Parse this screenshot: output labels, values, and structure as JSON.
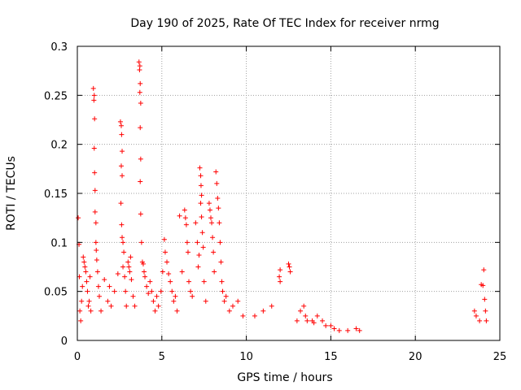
{
  "chart_data": {
    "type": "scatter",
    "title": "Day 190 of 2025, Rate Of TEC Index for receiver nrmg",
    "xlabel": "GPS time / hours",
    "ylabel": "ROTI / TECUs",
    "xlim": [
      0,
      25
    ],
    "ylim": [
      0,
      0.3
    ],
    "xticks": [
      0,
      5,
      10,
      15,
      20,
      25
    ],
    "xtick_labels": [
      "0",
      "5",
      "10",
      "15",
      "20",
      "25"
    ],
    "yticks": [
      0,
      0.05,
      0.1,
      0.15,
      0.2,
      0.25,
      0.3
    ],
    "ytick_labels": [
      "0",
      "0.05",
      "0.1",
      "0.15",
      "0.2",
      "0.25",
      "0.3"
    ],
    "grid": true,
    "marker": "plus",
    "color": "#ff0000",
    "series": [
      {
        "name": "ROTI",
        "points": [
          [
            0.05,
            0.125
          ],
          [
            0.1,
            0.098
          ],
          [
            0.12,
            0.065
          ],
          [
            0.15,
            0.03
          ],
          [
            0.2,
            0.02
          ],
          [
            0.25,
            0.04
          ],
          [
            0.3,
            0.055
          ],
          [
            0.35,
            0.085
          ],
          [
            0.4,
            0.08
          ],
          [
            0.45,
            0.075
          ],
          [
            0.5,
            0.07
          ],
          [
            0.55,
            0.06
          ],
          [
            0.6,
            0.05
          ],
          [
            0.65,
            0.035
          ],
          [
            0.7,
            0.04
          ],
          [
            0.75,
            0.065
          ],
          [
            0.8,
            0.03
          ],
          [
            0.95,
            0.257
          ],
          [
            1.0,
            0.25
          ],
          [
            0.98,
            0.245
          ],
          [
            1.02,
            0.226
          ],
          [
            1.0,
            0.196
          ],
          [
            1.02,
            0.171
          ],
          [
            1.05,
            0.153
          ],
          [
            1.05,
            0.131
          ],
          [
            1.1,
            0.12
          ],
          [
            1.1,
            0.1
          ],
          [
            1.12,
            0.092
          ],
          [
            1.15,
            0.082
          ],
          [
            1.2,
            0.07
          ],
          [
            1.25,
            0.055
          ],
          [
            1.3,
            0.045
          ],
          [
            1.4,
            0.03
          ],
          [
            1.6,
            0.062
          ],
          [
            1.8,
            0.04
          ],
          [
            1.9,
            0.055
          ],
          [
            2.0,
            0.035
          ],
          [
            2.2,
            0.05
          ],
          [
            2.4,
            0.068
          ],
          [
            2.55,
            0.223
          ],
          [
            2.6,
            0.219
          ],
          [
            2.62,
            0.21
          ],
          [
            2.65,
            0.193
          ],
          [
            2.6,
            0.178
          ],
          [
            2.65,
            0.168
          ],
          [
            2.58,
            0.14
          ],
          [
            2.62,
            0.118
          ],
          [
            2.65,
            0.105
          ],
          [
            2.7,
            0.1
          ],
          [
            2.75,
            0.09
          ],
          [
            2.7,
            0.075
          ],
          [
            2.8,
            0.065
          ],
          [
            2.85,
            0.05
          ],
          [
            2.9,
            0.035
          ],
          [
            3.0,
            0.08
          ],
          [
            3.05,
            0.075
          ],
          [
            3.1,
            0.07
          ],
          [
            3.15,
            0.085
          ],
          [
            3.2,
            0.062
          ],
          [
            3.3,
            0.045
          ],
          [
            3.4,
            0.035
          ],
          [
            3.65,
            0.284
          ],
          [
            3.7,
            0.28
          ],
          [
            3.68,
            0.276
          ],
          [
            3.72,
            0.262
          ],
          [
            3.7,
            0.253
          ],
          [
            3.75,
            0.242
          ],
          [
            3.72,
            0.217
          ],
          [
            3.75,
            0.185
          ],
          [
            3.72,
            0.162
          ],
          [
            3.75,
            0.129
          ],
          [
            3.8,
            0.1
          ],
          [
            3.85,
            0.08
          ],
          [
            3.9,
            0.078
          ],
          [
            3.95,
            0.07
          ],
          [
            4.0,
            0.065
          ],
          [
            4.1,
            0.055
          ],
          [
            4.2,
            0.048
          ],
          [
            4.3,
            0.06
          ],
          [
            4.4,
            0.05
          ],
          [
            4.5,
            0.04
          ],
          [
            4.6,
            0.03
          ],
          [
            4.7,
            0.045
          ],
          [
            4.8,
            0.035
          ],
          [
            4.95,
            0.05
          ],
          [
            5.05,
            0.07
          ],
          [
            5.15,
            0.103
          ],
          [
            5.2,
            0.09
          ],
          [
            5.3,
            0.08
          ],
          [
            5.4,
            0.068
          ],
          [
            5.5,
            0.06
          ],
          [
            5.6,
            0.05
          ],
          [
            5.7,
            0.04
          ],
          [
            5.8,
            0.045
          ],
          [
            5.9,
            0.03
          ],
          [
            6.05,
            0.127
          ],
          [
            6.2,
            0.07
          ],
          [
            6.35,
            0.133
          ],
          [
            6.4,
            0.125
          ],
          [
            6.45,
            0.118
          ],
          [
            6.5,
            0.1
          ],
          [
            6.55,
            0.09
          ],
          [
            6.6,
            0.06
          ],
          [
            6.7,
            0.05
          ],
          [
            6.8,
            0.045
          ],
          [
            7.0,
            0.12
          ],
          [
            7.1,
            0.1
          ],
          [
            7.15,
            0.075
          ],
          [
            7.2,
            0.087
          ],
          [
            7.25,
            0.176
          ],
          [
            7.3,
            0.168
          ],
          [
            7.32,
            0.158
          ],
          [
            7.35,
            0.148
          ],
          [
            7.3,
            0.14
          ],
          [
            7.35,
            0.126
          ],
          [
            7.4,
            0.11
          ],
          [
            7.45,
            0.095
          ],
          [
            7.5,
            0.06
          ],
          [
            7.6,
            0.04
          ],
          [
            7.8,
            0.14
          ],
          [
            7.85,
            0.133
          ],
          [
            7.9,
            0.125
          ],
          [
            7.95,
            0.12
          ],
          [
            8.0,
            0.105
          ],
          [
            8.05,
            0.09
          ],
          [
            8.1,
            0.07
          ],
          [
            8.2,
            0.172
          ],
          [
            8.25,
            0.16
          ],
          [
            8.3,
            0.145
          ],
          [
            8.35,
            0.135
          ],
          [
            8.4,
            0.12
          ],
          [
            8.45,
            0.1
          ],
          [
            8.5,
            0.08
          ],
          [
            8.55,
            0.06
          ],
          [
            8.6,
            0.05
          ],
          [
            8.7,
            0.04
          ],
          [
            8.8,
            0.045
          ],
          [
            9.0,
            0.03
          ],
          [
            9.2,
            0.035
          ],
          [
            9.5,
            0.04
          ],
          [
            9.8,
            0.025
          ],
          [
            10.5,
            0.025
          ],
          [
            11.0,
            0.03
          ],
          [
            11.5,
            0.035
          ],
          [
            12.0,
            0.072
          ],
          [
            11.95,
            0.065
          ],
          [
            12.0,
            0.06
          ],
          [
            12.5,
            0.078
          ],
          [
            12.55,
            0.075
          ],
          [
            12.6,
            0.07
          ],
          [
            13.0,
            0.02
          ],
          [
            13.2,
            0.03
          ],
          [
            13.4,
            0.035
          ],
          [
            13.5,
            0.025
          ],
          [
            13.6,
            0.02
          ],
          [
            13.9,
            0.02
          ],
          [
            14.0,
            0.018
          ],
          [
            14.2,
            0.025
          ],
          [
            14.5,
            0.02
          ],
          [
            14.7,
            0.015
          ],
          [
            15.0,
            0.015
          ],
          [
            15.2,
            0.012
          ],
          [
            15.5,
            0.01
          ],
          [
            16.0,
            0.01
          ],
          [
            16.5,
            0.012
          ],
          [
            16.7,
            0.01
          ],
          [
            23.5,
            0.03
          ],
          [
            23.6,
            0.025
          ],
          [
            23.8,
            0.02
          ],
          [
            23.9,
            0.057
          ],
          [
            24.0,
            0.056
          ],
          [
            24.05,
            0.072
          ],
          [
            24.1,
            0.042
          ],
          [
            24.15,
            0.03
          ],
          [
            24.2,
            0.02
          ]
        ]
      }
    ]
  }
}
